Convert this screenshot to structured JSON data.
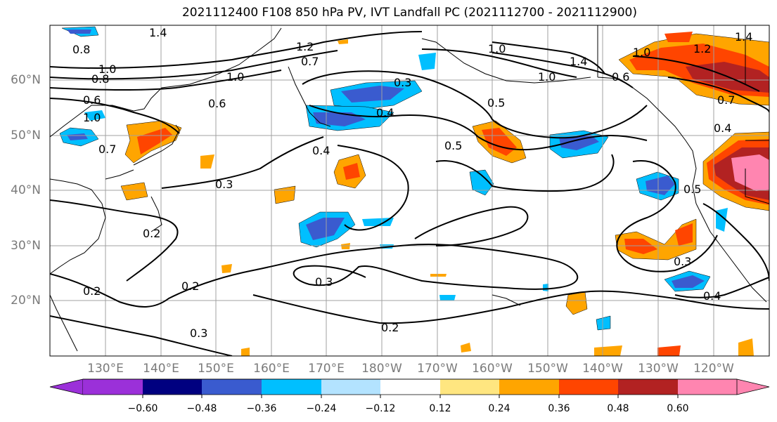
{
  "title": "2021112400 F108 850 hPa PV, IVT Landfall PC (2021112700 - 2021112900)",
  "lat_labels": [
    "60°N",
    "50°N",
    "40°N",
    "30°N",
    "20°N"
  ],
  "lon_labels": [
    "130°E",
    "140°E",
    "150°E",
    "160°E",
    "170°E",
    "180°W",
    "170°W",
    "160°W",
    "150°W",
    "140°W",
    "130°W",
    "120°W"
  ],
  "colorbar": {
    "colors": [
      "#9b30d9",
      "#000080",
      "#3a5bcf",
      "#00bfff",
      "#b3e3ff",
      "#ffffff",
      "#ffe680",
      "#ffa500",
      "#ff4500",
      "#b22222",
      "#ff85b0"
    ],
    "tick_labels": [
      "−0.60",
      "−0.48",
      "−0.36",
      "−0.24",
      "−0.12",
      "0.12",
      "0.24",
      "0.36",
      "0.48",
      "0.60"
    ]
  },
  "contour_labels": [
    "0.8",
    "1.4",
    "1.0",
    "0.6",
    "1.0",
    "0.8",
    "0.7",
    "1.0",
    "0.6",
    "1.2",
    "0.7",
    "0.3",
    "0.4",
    "0.5",
    "1.0",
    "0.3",
    "0.4",
    "0.2",
    "0.2",
    "0.2",
    "0.3",
    "0.3",
    "0.2",
    "0.5",
    "1.4",
    "1.4",
    "1.0",
    "1.2",
    "0.6",
    "1.0",
    "0.7",
    "0.4",
    "0.5",
    "0.3",
    "0.4"
  ],
  "map_colors": {
    "coast": "#000000",
    "grid": "#a0a0a0"
  }
}
